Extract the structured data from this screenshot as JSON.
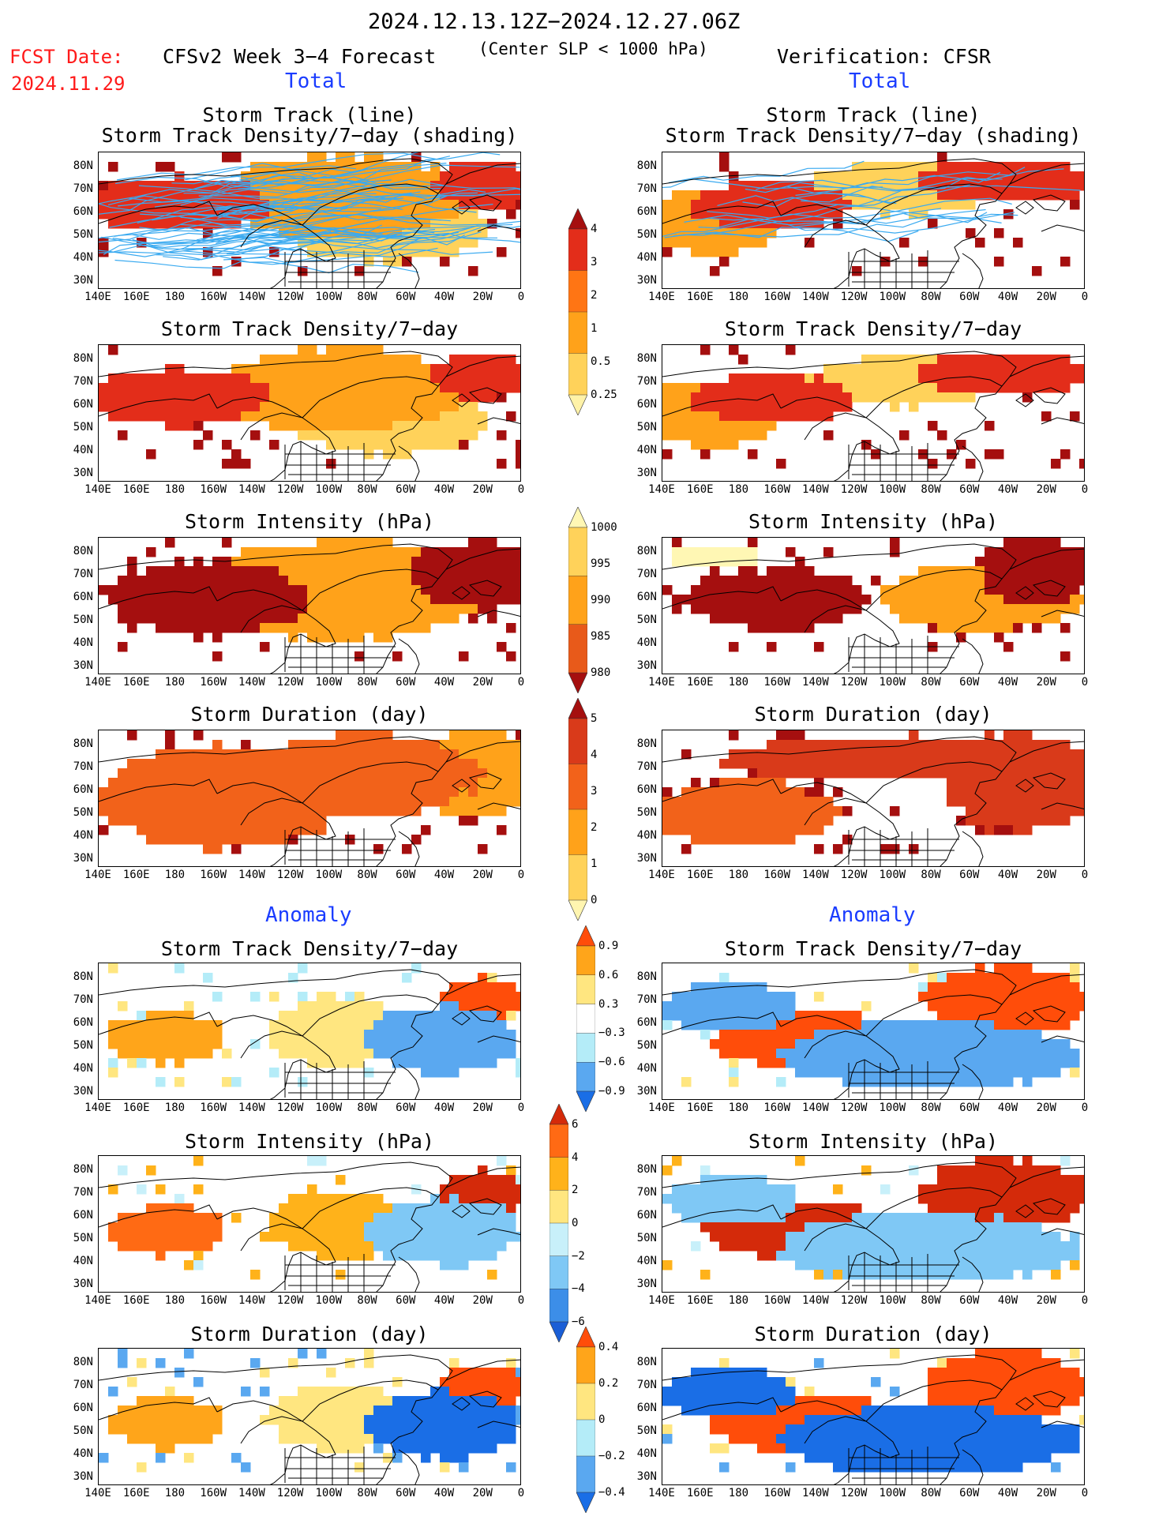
{
  "header": {
    "date_range": "2024.12.13.12Z−2024.12.27.06Z",
    "fcst_label": "FCST Date:",
    "fcst_date": "2024.11.29",
    "forecast_title": "CFSv2 Week 3−4 Forecast",
    "criterion": "(Center SLP < 1000 hPa)",
    "verification": "Verification: CFSR"
  },
  "sections": {
    "total_left": "Total",
    "total_right": "Total",
    "anomaly_left": "Anomaly",
    "anomaly_right": "Anomaly"
  },
  "panels": {
    "r1_left_title_1": "Storm Track (line)",
    "r1_left_title_2": "Storm Track Density/7−day (shading)",
    "r1_right_title_1": "Storm Track (line)",
    "r1_right_title_2": "Storm Track Density/7−day (shading)",
    "r2_left": "Storm Track Density/7−day",
    "r2_right": "Storm Track Density/7−day",
    "r3_left": "Storm Intensity (hPa)",
    "r3_right": "Storm Intensity (hPa)",
    "r4_left": "Storm Duration (day)",
    "r4_right": "Storm Duration (day)",
    "r5_left": "Storm Track Density/7−day",
    "r5_right": "Storm Track Density/7−day",
    "r6_left": "Storm Intensity (hPa)",
    "r6_right": "Storm Intensity (hPa)",
    "r7_left": "Storm Duration (day)",
    "r7_right": "Storm Duration (day)"
  },
  "axes": {
    "lat_labels": [
      "80N",
      "70N",
      "60N",
      "50N",
      "40N",
      "30N"
    ],
    "lon_labels": [
      "140E",
      "160E",
      "180",
      "160W",
      "140W",
      "120W",
      "100W",
      "80W",
      "60W",
      "40W",
      "20W",
      "0"
    ]
  },
  "colorbars": {
    "density": {
      "labels": [
        "4",
        "3",
        "2",
        "1",
        "0.5",
        "0.25"
      ],
      "colors": [
        "#a50f0f",
        "#e32d1a",
        "#ff7514",
        "#ffa21a",
        "#ffd25a",
        "#fff2a8"
      ]
    },
    "intensity": {
      "labels": [
        "1000",
        "995",
        "990",
        "985",
        "980"
      ],
      "colors": [
        "#fff7b4",
        "#ffd25a",
        "#ffa21a",
        "#e85a1a",
        "#a50f0f"
      ]
    },
    "duration": {
      "labels": [
        "5",
        "4",
        "3",
        "2",
        "1",
        "0"
      ],
      "colors": [
        "#a50f0f",
        "#d93a1a",
        "#f2621a",
        "#ffa21a",
        "#ffd25a",
        "#fff5b0"
      ]
    },
    "anom_density": {
      "labels": [
        "0.9",
        "0.6",
        "0.3",
        "−0.3",
        "−0.6",
        "−0.9"
      ],
      "colors": [
        "#ff4d0a",
        "#ffa51a",
        "#ffe680",
        "#ffffff",
        "#b4ecf8",
        "#5aa8f0",
        "#1a6ee6"
      ]
    },
    "anom_intensity": {
      "labels": [
        "6",
        "4",
        "2",
        "0",
        "−2",
        "−4",
        "−6"
      ],
      "colors": [
        "#d42a0a",
        "#ff6a14",
        "#ffb21a",
        "#ffe680",
        "#c8f0fa",
        "#7fc8f5",
        "#3c8ee8",
        "#1a5ed6"
      ]
    },
    "anom_duration": {
      "labels": [
        "0.4",
        "0.2",
        "0",
        "−0.2",
        "−0.4"
      ],
      "colors": [
        "#ff4d0a",
        "#ffa51a",
        "#ffe680",
        "#b4ecf8",
        "#5aa8f0",
        "#1a6ee6"
      ]
    }
  }
}
